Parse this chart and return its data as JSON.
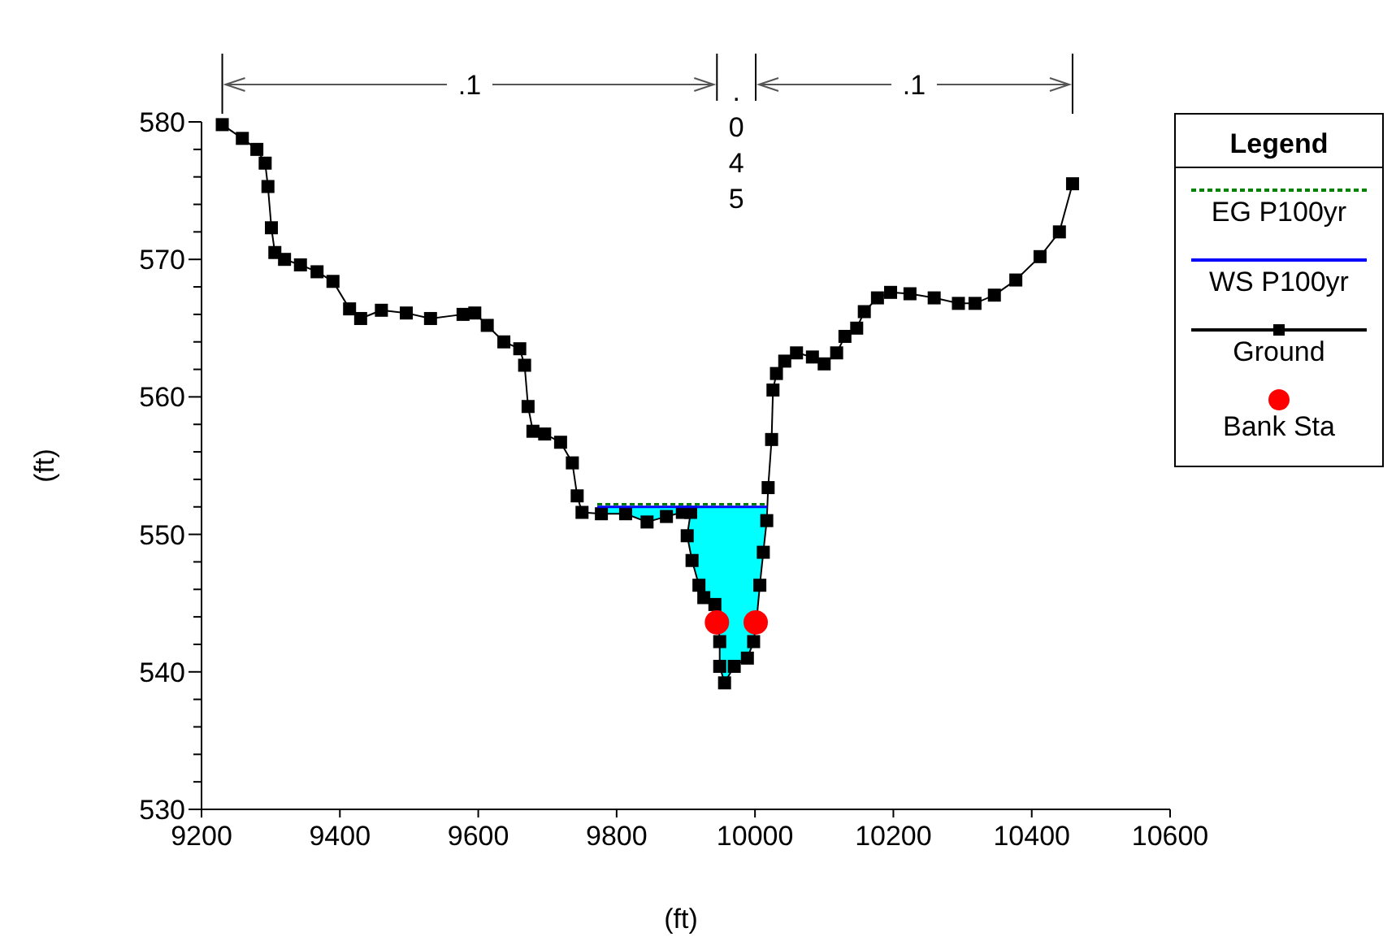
{
  "chart_data": {
    "type": "line",
    "xlabel": "(ft)",
    "ylabel": "(ft)",
    "legend_title": "Legend",
    "legend": "right",
    "grid": false,
    "xlim": [
      9200,
      10600
    ],
    "xticks": [
      9200,
      9400,
      9600,
      9800,
      10000,
      10200,
      10400,
      10600
    ],
    "ylim": [
      530,
      580
    ],
    "yticks": [
      530,
      {
        "value": 532,
        "label": null
      },
      {
        "value": 534,
        "label": null
      },
      {
        "value": 536,
        "label": null
      },
      {
        "value": 538,
        "label": null
      },
      540,
      {
        "value": 542,
        "label": null
      },
      {
        "value": 544,
        "label": null
      },
      {
        "value": 546,
        "label": null
      },
      {
        "value": 548,
        "label": null
      },
      550,
      {
        "value": 552,
        "label": null
      },
      {
        "value": 554,
        "label": null
      },
      {
        "value": 556,
        "label": null
      },
      {
        "value": 558,
        "label": null
      },
      560,
      {
        "value": 562,
        "label": null
      },
      {
        "value": 564,
        "label": null
      },
      {
        "value": 566,
        "label": null
      },
      {
        "value": 568,
        "label": null
      },
      570,
      {
        "value": 572,
        "label": null
      },
      {
        "value": 574,
        "label": null
      },
      {
        "value": 576,
        "label": null
      },
      {
        "value": 578,
        "label": null
      },
      580
    ],
    "annotations": [
      ".1",
      ".045",
      ".1"
    ],
    "series": [
      {
        "name": "EG P100yr",
        "color": "#008000",
        "line_style": "dashed",
        "marker": "none",
        "x": [
          9772,
          10018
        ],
        "values": [
          552.2,
          552.2
        ]
      },
      {
        "name": "WS P100yr",
        "color": "#0000ff",
        "line_style": "solid",
        "marker": "none",
        "x": [
          9772,
          10018
        ],
        "values": [
          552.0,
          552.0
        ]
      },
      {
        "name": "Ground",
        "color": "#000000",
        "line_style": "solid",
        "marker": "square",
        "x": [
          9230,
          9259,
          9280,
          9292,
          9296,
          9301,
          9306,
          9320,
          9343,
          9367,
          9390,
          9414,
          9430,
          9460,
          9496,
          9531,
          9578,
          9595,
          9613,
          9637,
          9660,
          9667,
          9672,
          9679,
          9696,
          9719,
          9736,
          9743,
          9750,
          9778,
          9813,
          9844,
          9872,
          9895,
          9907,
          9902,
          9909,
          9919,
          9926,
          9942,
          9947,
          9949,
          9949,
          9956,
          9970,
          9989,
          9998,
          10002,
          10007,
          10012,
          10017,
          10019,
          10024,
          10026,
          10031,
          10043,
          10060,
          10083,
          10100,
          10118,
          10130,
          10147,
          10158,
          10177,
          10196,
          10224,
          10259,
          10294,
          10318,
          10346,
          10377,
          10412,
          10440,
          10459
        ],
        "values": [
          579.8,
          578.8,
          578.0,
          577.0,
          575.3,
          572.3,
          570.5,
          570.0,
          569.6,
          569.1,
          568.4,
          566.4,
          565.7,
          566.3,
          566.1,
          565.7,
          566.0,
          566.1,
          565.2,
          564.0,
          563.5,
          562.3,
          559.3,
          557.5,
          557.3,
          556.7,
          555.2,
          552.8,
          551.6,
          551.5,
          551.5,
          550.9,
          551.3,
          551.6,
          551.6,
          549.9,
          548.1,
          546.3,
          545.4,
          544.9,
          543.6,
          542.2,
          540.4,
          539.2,
          540.4,
          541.0,
          542.2,
          543.6,
          546.3,
          548.7,
          551.0,
          553.4,
          556.9,
          560.5,
          561.7,
          562.6,
          563.2,
          562.9,
          562.4,
          563.2,
          564.4,
          565.0,
          566.2,
          567.2,
          567.6,
          567.5,
          567.2,
          566.8,
          566.8,
          567.4,
          568.5,
          570.2,
          572.0,
          575.5
        ]
      },
      {
        "name": "Bank Sta",
        "type": "scatter",
        "color": "#ff0000",
        "marker": "circle",
        "x": [
          9945,
          10001
        ],
        "values": [
          543.6,
          543.6
        ]
      }
    ]
  }
}
